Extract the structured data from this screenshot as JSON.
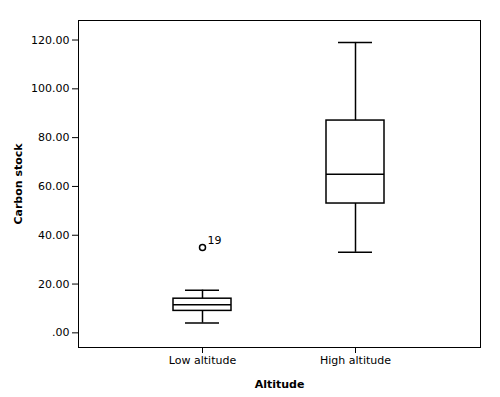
{
  "chart_data": {
    "type": "box",
    "xlabel": "Altitude",
    "ylabel": "Carbon stock",
    "categories": [
      "Low altitude",
      "High altitude"
    ],
    "boxes": [
      {
        "whisker_low": 4.0,
        "q1": 9.0,
        "median": 11.5,
        "q3": 14.0,
        "whisker_high": 17.5,
        "outliers": [
          35.0
        ],
        "outlier_labels": [
          "19"
        ]
      },
      {
        "whisker_low": 33.0,
        "q1": 53.0,
        "median": 65.0,
        "q3": 87.0,
        "whisker_high": 119.0,
        "outliers": [],
        "outlier_labels": []
      }
    ],
    "color": "#000000",
    "ylim": [
      -6,
      128
    ],
    "yticks": [
      {
        "value": 0.0,
        "label": ".00"
      },
      {
        "value": 20.0,
        "label": "20.00"
      },
      {
        "value": 40.0,
        "label": "40.00"
      },
      {
        "value": 60.0,
        "label": "60.00"
      },
      {
        "value": 80.0,
        "label": "80.00"
      },
      {
        "value": 100.0,
        "label": "100.00"
      },
      {
        "value": 120.0,
        "label": "120.00"
      }
    ]
  }
}
